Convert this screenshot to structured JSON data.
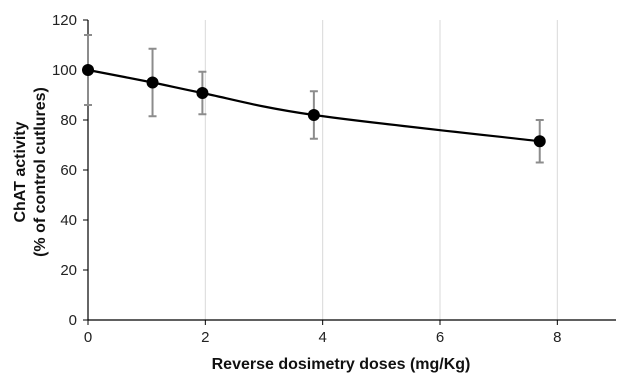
{
  "chart_data": {
    "type": "line",
    "title": "",
    "xlabel": "Reverse dosimetry doses (mg/Kg)",
    "ylabel_lines": [
      "ChAT activity",
      "(% of control cutlures)"
    ],
    "xlim": [
      0,
      9
    ],
    "ylim": [
      0,
      120
    ],
    "x_ticks": [
      0,
      2,
      4,
      6,
      8
    ],
    "y_ticks": [
      0,
      20,
      40,
      60,
      80,
      100,
      120
    ],
    "x_grid": true,
    "series": [
      {
        "x": [
          0,
          1.1,
          1.95,
          3.85,
          7.7
        ],
        "y": [
          100,
          95,
          90.8,
          82,
          71.5
        ],
        "error": [
          14,
          13.5,
          8.5,
          9.5,
          8.5
        ]
      }
    ]
  }
}
